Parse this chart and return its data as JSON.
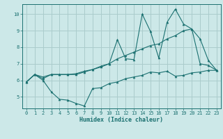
{
  "xlabel": "Humidex (Indice chaleur)",
  "bg_color": "#cce8e8",
  "grid_color": "#aacccc",
  "line_color": "#1a7070",
  "xlim": [
    -0.5,
    23.5
  ],
  "ylim": [
    4.3,
    10.6
  ],
  "xticks": [
    0,
    1,
    2,
    3,
    4,
    5,
    6,
    7,
    8,
    9,
    10,
    11,
    12,
    13,
    14,
    15,
    16,
    17,
    18,
    19,
    20,
    21,
    22,
    23
  ],
  "yticks": [
    5,
    6,
    7,
    8,
    9,
    10
  ],
  "series1_x": [
    0,
    1,
    2,
    3,
    4,
    5,
    6,
    7,
    8,
    9,
    10,
    11,
    12,
    13,
    14,
    15,
    16,
    17,
    18,
    19,
    20,
    21,
    22,
    23
  ],
  "series1_y": [
    5.9,
    6.35,
    6.0,
    5.3,
    4.85,
    4.8,
    4.6,
    4.45,
    5.5,
    5.55,
    5.8,
    5.9,
    6.1,
    6.2,
    6.3,
    6.5,
    6.45,
    6.55,
    6.25,
    6.3,
    6.45,
    6.5,
    6.6,
    6.6
  ],
  "series2_x": [
    0,
    1,
    2,
    3,
    4,
    5,
    6,
    7,
    8,
    9,
    10,
    11,
    12,
    13,
    14,
    15,
    16,
    17,
    18,
    19,
    20,
    21,
    22,
    23
  ],
  "series2_y": [
    5.9,
    6.35,
    6.1,
    6.35,
    6.35,
    6.35,
    6.35,
    6.5,
    6.65,
    6.8,
    7.0,
    7.3,
    7.5,
    7.7,
    7.9,
    8.1,
    8.2,
    8.5,
    8.7,
    9.0,
    9.1,
    8.5,
    7.2,
    6.6
  ],
  "series3_x": [
    0,
    1,
    2,
    3,
    4,
    5,
    6,
    7,
    8,
    9,
    10,
    11,
    12,
    13,
    14,
    15,
    16,
    17,
    18,
    19,
    20,
    21,
    22,
    23
  ],
  "series3_y": [
    5.9,
    6.35,
    6.2,
    6.35,
    6.35,
    6.35,
    6.4,
    6.55,
    6.65,
    6.85,
    7.0,
    8.45,
    7.3,
    7.25,
    10.0,
    8.95,
    7.35,
    9.5,
    10.3,
    9.4,
    9.1,
    7.0,
    6.9,
    6.6
  ]
}
